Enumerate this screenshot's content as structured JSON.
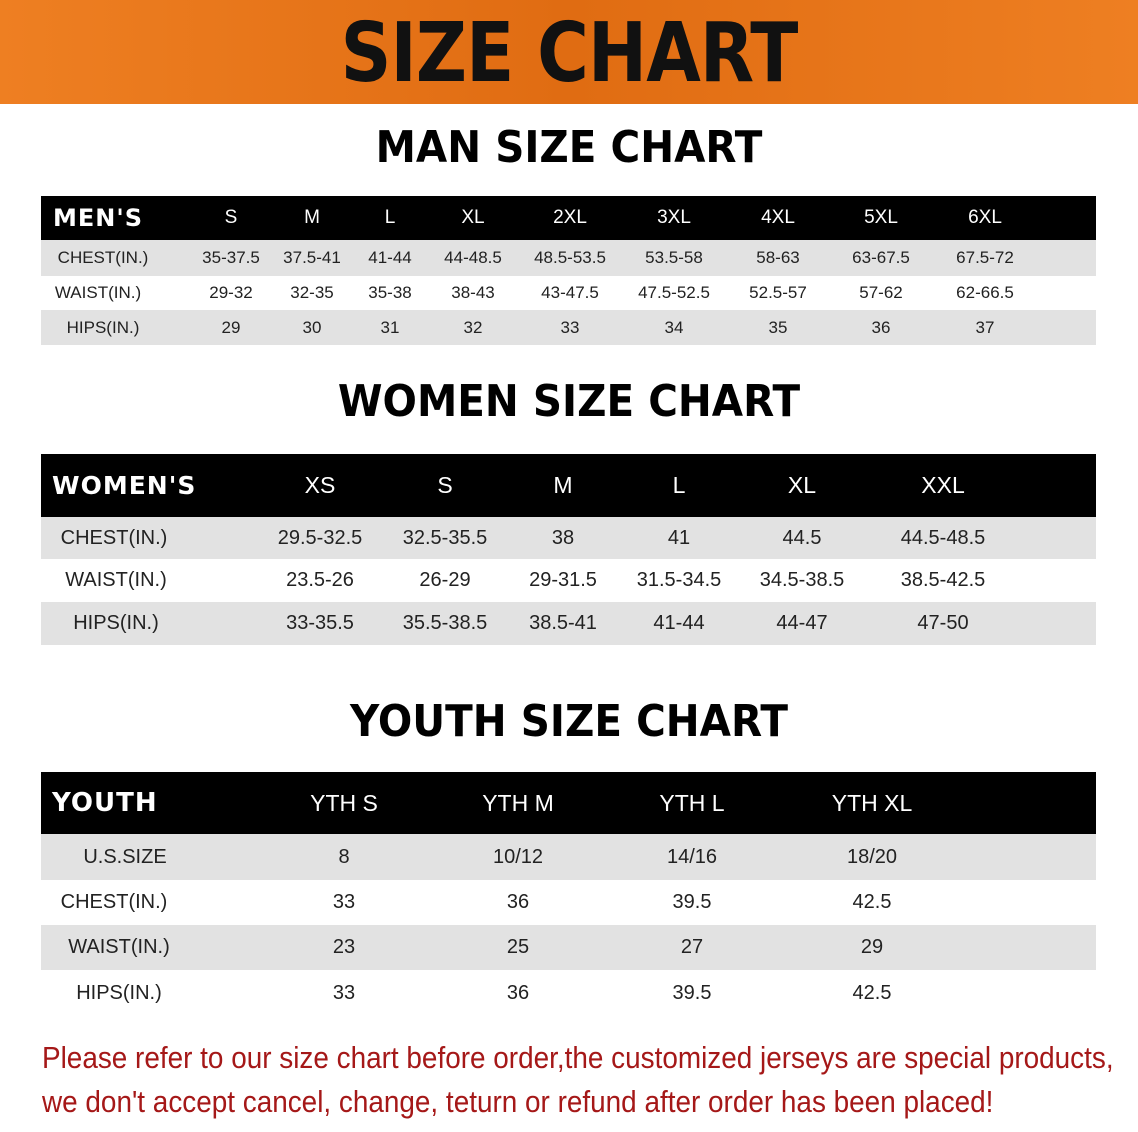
{
  "banner": {
    "title": "SIZE CHART"
  },
  "men": {
    "title": "MAN SIZE CHART",
    "header_label": "MEN'S",
    "sizes": [
      "S",
      "M",
      "L",
      "XL",
      "2XL",
      "3XL",
      "4XL",
      "5XL",
      "6XL"
    ],
    "rows": [
      {
        "label": "CHEST(IN.)",
        "values": [
          "35-37.5",
          "37.5-41",
          "41-44",
          "44-48.5",
          "48.5-53.5",
          "53.5-58",
          "58-63",
          "63-67.5",
          "67.5-72"
        ]
      },
      {
        "label": "WAIST(IN.)",
        "values": [
          "29-32",
          "32-35",
          "35-38",
          "38-43",
          "43-47.5",
          "47.5-52.5",
          "52.5-57",
          "57-62",
          "62-66.5"
        ]
      },
      {
        "label": "HIPS(IN.)",
        "values": [
          "29",
          "30",
          "31",
          "32",
          "33",
          "34",
          "35",
          "36",
          "37"
        ]
      }
    ]
  },
  "women": {
    "title": "WOMEN SIZE CHART",
    "header_label": "WOMEN'S",
    "sizes": [
      "XS",
      "S",
      "M",
      "L",
      "XL",
      "XXL"
    ],
    "rows": [
      {
        "label": "CHEST(IN.)",
        "values": [
          "29.5-32.5",
          "32.5-35.5",
          "38",
          "41",
          "44.5",
          "44.5-48.5"
        ]
      },
      {
        "label": "WAIST(IN.)",
        "values": [
          "23.5-26",
          "26-29",
          "29-31.5",
          "31.5-34.5",
          "34.5-38.5",
          "38.5-42.5"
        ]
      },
      {
        "label": "HIPS(IN.)",
        "values": [
          "33-35.5",
          "35.5-38.5",
          "38.5-41",
          "41-44",
          "44-47",
          "47-50"
        ]
      }
    ]
  },
  "youth": {
    "title": "YOUTH SIZE CHART",
    "header_label": "YOUTH",
    "sizes": [
      "YTH S",
      "YTH M",
      "YTH L",
      "YTH XL"
    ],
    "rows": [
      {
        "label": "U.S.SIZE",
        "values": [
          "8",
          "10/12",
          "14/16",
          "18/20"
        ]
      },
      {
        "label": "CHEST(IN.)",
        "values": [
          "33",
          "36",
          "39.5",
          "42.5"
        ]
      },
      {
        "label": "WAIST(IN.)",
        "values": [
          "23",
          "25",
          "27",
          "29"
        ]
      },
      {
        "label": "HIPS(IN.)",
        "values": [
          "33",
          "36",
          "39.5",
          "42.5"
        ]
      }
    ]
  },
  "notice": {
    "line1": "Please refer to our size chart before order,the customized jerseys are special products,",
    "line2": "we don't accept cancel, change, teturn or refund after order has been placed!"
  },
  "colors": {
    "banner": "#e8761a",
    "header_row": "#000000",
    "stripe": "#e2e2e2",
    "notice": "#a51818"
  }
}
